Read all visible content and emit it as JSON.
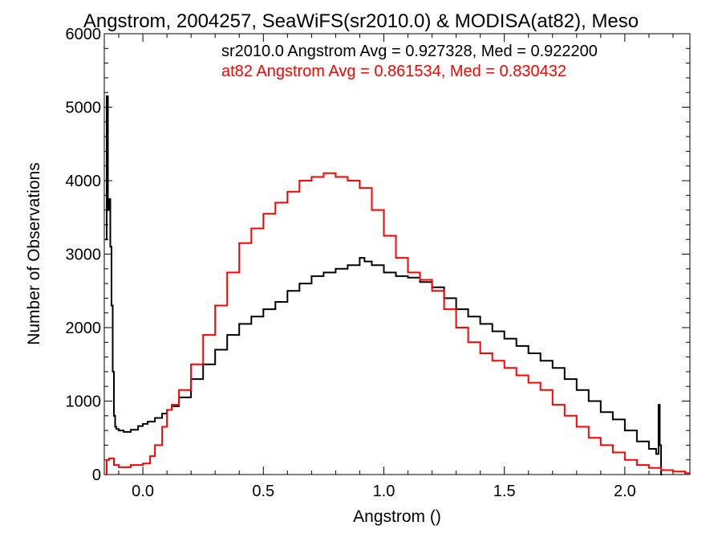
{
  "chart_data": {
    "type": "line",
    "title": "Angstrom, 2004257, SeaWiFS(sr2010.0) & MODISA(at82), Meso",
    "xlabel": "Angstrom ()",
    "ylabel": "Number of Observations",
    "xlim": [
      -0.16,
      2.27
    ],
    "ylim": [
      0,
      6000
    ],
    "x_ticks": [
      0.0,
      0.5,
      1.0,
      1.5,
      2.0
    ],
    "x_tick_labels": [
      "0.0",
      "0.5",
      "1.0",
      "1.5",
      "2.0"
    ],
    "y_ticks": [
      0,
      1000,
      2000,
      3000,
      4000,
      5000,
      6000
    ],
    "y_tick_labels": [
      "0",
      "1000",
      "2000",
      "3000",
      "4000",
      "5000",
      "6000"
    ],
    "grid": false,
    "legend_position": "top-right",
    "annotations": [
      {
        "text": "sr2010.0 Angstrom Avg = 0.927328, Med = 0.922200",
        "color": "#000000"
      },
      {
        "text": "at82 Angstrom Avg = 0.861534, Med = 0.830432",
        "color": "#ff0000"
      }
    ],
    "series": [
      {
        "color": "#000000",
        "step": true,
        "x": [
          -0.155,
          -0.15,
          -0.145,
          -0.14,
          -0.135,
          -0.13,
          -0.125,
          -0.12,
          -0.115,
          -0.11,
          -0.1,
          -0.08,
          -0.05,
          -0.02,
          0.0,
          0.02,
          0.05,
          0.08,
          0.1,
          0.12,
          0.15,
          0.2,
          0.25,
          0.3,
          0.35,
          0.4,
          0.45,
          0.5,
          0.55,
          0.6,
          0.65,
          0.7,
          0.75,
          0.8,
          0.85,
          0.9,
          0.92,
          0.95,
          1.0,
          1.05,
          1.1,
          1.15,
          1.2,
          1.25,
          1.3,
          1.35,
          1.4,
          1.45,
          1.5,
          1.55,
          1.6,
          1.65,
          1.7,
          1.75,
          1.8,
          1.85,
          1.9,
          1.95,
          2.0,
          2.05,
          2.1,
          2.13,
          2.14,
          2.145,
          2.15
        ],
        "y": [
          3200,
          5150,
          3600,
          3750,
          3100,
          2300,
          1400,
          800,
          650,
          620,
          600,
          580,
          610,
          660,
          690,
          720,
          770,
          830,
          880,
          930,
          1050,
          1300,
          1500,
          1700,
          1900,
          2050,
          2150,
          2250,
          2350,
          2500,
          2600,
          2700,
          2750,
          2800,
          2850,
          2950,
          2900,
          2850,
          2750,
          2700,
          2680,
          2620,
          2550,
          2400,
          2250,
          2150,
          2050,
          1950,
          1850,
          1750,
          1650,
          1550,
          1450,
          1300,
          1150,
          1000,
          850,
          750,
          600,
          450,
          350,
          280,
          950,
          400,
          0
        ]
      },
      {
        "color": "#ff0000",
        "step": true,
        "x": [
          -0.155,
          -0.15,
          -0.14,
          -0.12,
          -0.1,
          -0.05,
          0.0,
          0.03,
          0.05,
          0.08,
          0.1,
          0.12,
          0.15,
          0.2,
          0.25,
          0.3,
          0.35,
          0.4,
          0.45,
          0.5,
          0.55,
          0.6,
          0.65,
          0.7,
          0.75,
          0.8,
          0.85,
          0.9,
          0.95,
          1.0,
          1.05,
          1.1,
          1.15,
          1.2,
          1.25,
          1.3,
          1.35,
          1.4,
          1.45,
          1.5,
          1.55,
          1.6,
          1.65,
          1.7,
          1.75,
          1.8,
          1.85,
          1.9,
          1.95,
          2.0,
          2.05,
          2.1,
          2.15,
          2.2,
          2.25
        ],
        "y": [
          0,
          200,
          220,
          130,
          100,
          130,
          150,
          250,
          400,
          650,
          880,
          950,
          1150,
          1500,
          1900,
          2300,
          2750,
          3150,
          3350,
          3550,
          3700,
          3850,
          4000,
          4050,
          4100,
          4050,
          4000,
          3900,
          3600,
          3250,
          2950,
          2750,
          2650,
          2500,
          2250,
          2000,
          1800,
          1650,
          1550,
          1450,
          1350,
          1250,
          1150,
          950,
          800,
          650,
          500,
          400,
          300,
          200,
          130,
          90,
          60,
          40,
          20
        ]
      }
    ]
  }
}
